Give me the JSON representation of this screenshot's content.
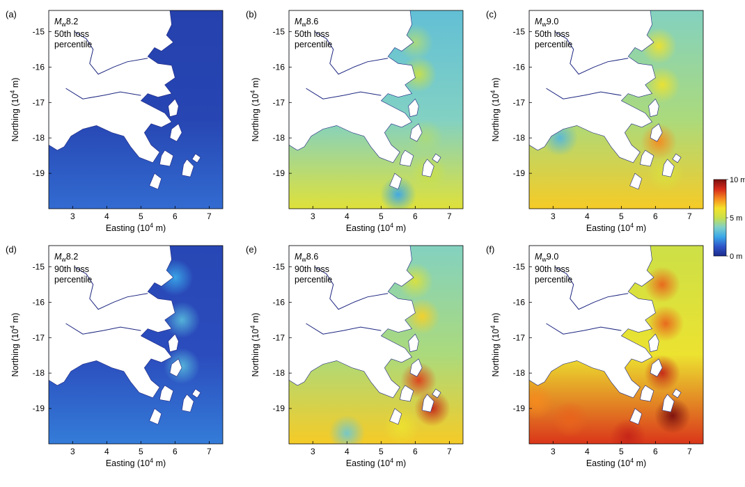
{
  "panels": [
    {
      "id": "a",
      "label": "(a)",
      "magnitude": "8.2",
      "percentile": "50th loss",
      "percentile_word": "percentile",
      "level": 0.08,
      "hotspots": []
    },
    {
      "id": "b",
      "label": "(b)",
      "magnitude": "8.6",
      "percentile": "50th loss",
      "percentile_word": "percentile",
      "level": 0.38,
      "hotspots": [
        [
          6.0,
          -15.3,
          0.45
        ],
        [
          6.1,
          -16.2,
          0.5
        ],
        [
          6.3,
          -18.0,
          0.45
        ],
        [
          6.4,
          -19.0,
          0.5
        ],
        [
          5.5,
          -19.6,
          0.25
        ]
      ]
    },
    {
      "id": "c",
      "label": "(c)",
      "magnitude": "9.0",
      "percentile": "50th loss",
      "percentile_word": "percentile",
      "level": 0.45,
      "hotspots": [
        [
          6.1,
          -15.4,
          0.6
        ],
        [
          6.2,
          -16.5,
          0.6
        ],
        [
          6.1,
          -18.1,
          0.75
        ],
        [
          6.3,
          -19.0,
          0.55
        ],
        [
          3.2,
          -18.0,
          0.3
        ]
      ]
    },
    {
      "id": "d",
      "label": "(d)",
      "magnitude": "8.2",
      "percentile": "90th loss",
      "percentile_word": "percentile",
      "level": 0.1,
      "hotspots": [
        [
          6.2,
          -16.5,
          0.3
        ],
        [
          6.2,
          -17.8,
          0.3
        ],
        [
          6.0,
          -15.3,
          0.25
        ]
      ]
    },
    {
      "id": "e",
      "label": "(e)",
      "magnitude": "8.6",
      "percentile": "90th loss",
      "percentile_word": "percentile",
      "level": 0.45,
      "hotspots": [
        [
          6.0,
          -15.4,
          0.55
        ],
        [
          6.2,
          -16.4,
          0.65
        ],
        [
          6.1,
          -18.2,
          0.85
        ],
        [
          6.5,
          -19.0,
          0.9
        ],
        [
          5.6,
          -19.5,
          0.6
        ],
        [
          4.0,
          -19.7,
          0.35
        ]
      ]
    },
    {
      "id": "f",
      "label": "(f)",
      "magnitude": "9.0",
      "percentile": "90th loss",
      "percentile_word": "percentile",
      "level": 0.6,
      "hotspots": [
        [
          6.2,
          -15.5,
          0.8
        ],
        [
          6.3,
          -16.6,
          0.8
        ],
        [
          6.2,
          -18.0,
          0.9
        ],
        [
          6.5,
          -19.2,
          1.0
        ],
        [
          5.2,
          -19.8,
          0.9
        ],
        [
          3.5,
          -19.3,
          0.8
        ],
        [
          2.5,
          -18.8,
          0.75
        ]
      ]
    }
  ],
  "magnitude_symbol": "M",
  "magnitude_subscript": "w",
  "x_label": "Easting (10",
  "x_label_exp": "4",
  "x_label_end": " m)",
  "y_label": "Northing (10",
  "y_label_exp": "4",
  "y_label_end": " m)",
  "x_ticks": [
    "3",
    "4",
    "5",
    "6",
    "7"
  ],
  "y_ticks": [
    "-15",
    "-16",
    "-17",
    "-18",
    "-19"
  ],
  "x_tick_values": [
    3,
    4,
    5,
    6,
    7
  ],
  "y_tick_values": [
    -15,
    -16,
    -17,
    -18,
    -19
  ],
  "x_range": [
    2.3,
    7.4
  ],
  "y_range": [
    -20.0,
    -14.4
  ],
  "colorbar": {
    "labels": [
      "10 m",
      "5 m",
      "0 m"
    ],
    "values": [
      10,
      5,
      0
    ],
    "range": [
      0,
      10
    ],
    "colors": [
      "#1a2a8c",
      "#2f55c9",
      "#3aa7e8",
      "#7fd0c8",
      "#c8e04a",
      "#f5e22a",
      "#f58a1e",
      "#d62a1a",
      "#7a0e0e"
    ]
  },
  "colors": {
    "land": "#ffffff",
    "frame": "#000000",
    "coast": "#1a237e"
  }
}
